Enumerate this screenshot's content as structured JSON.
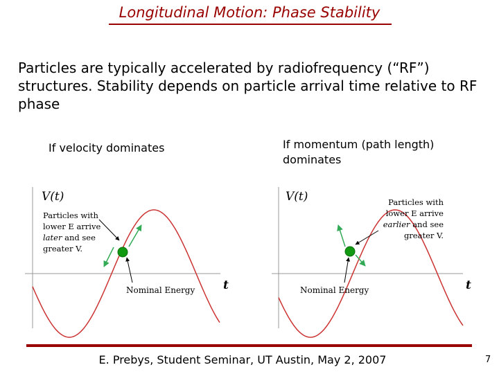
{
  "title": "Longitudinal Motion: Phase Stability",
  "intro": "Particles are typically accelerated by radiofrequency (“RF”) structures.  Stability depends on particle arrival time relative to RF phase",
  "left_panel": {
    "heading": "If velocity dominates",
    "y_label": "V(t)",
    "x_label": "t",
    "note_parts": [
      "Particles with lower E arrive ",
      "later",
      " and see greater V."
    ],
    "nominal_label": "Nominal Energy"
  },
  "right_panel": {
    "heading": "If momentum (path length) dominates",
    "y_label": "V(t)",
    "x_label": "t",
    "note_parts": [
      "Particles with lower E arrive ",
      "earlier",
      " and see greater V."
    ],
    "nominal_label": "Nominal Energy"
  },
  "footer": "E. Prebys, Student Seminar, UT Austin, May 2, 2007",
  "page_number": "7",
  "colors": {
    "title": "#990000",
    "wave": "#cc3333",
    "particle": "#119911",
    "arrow": "#33aa55"
  }
}
